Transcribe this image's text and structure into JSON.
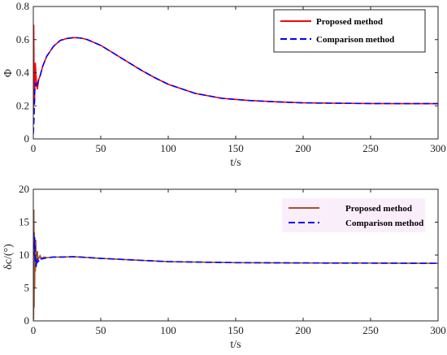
{
  "chart_data": [
    {
      "type": "line",
      "xlabel": "t/s",
      "ylabel": "Φ",
      "xlim": [
        0,
        300
      ],
      "ylim": [
        0,
        0.8
      ],
      "xticks": [
        "0",
        "50",
        "100",
        "150",
        "200",
        "250",
        "300"
      ],
      "yticks": [
        "0",
        "0.2",
        "0.4",
        "0.6",
        "0.8"
      ],
      "grid": false,
      "legend_position": "top-right",
      "series": [
        {
          "name": "Proposed method",
          "color": "#ff0000",
          "style": "solid",
          "x": [
            0,
            0.3,
            0.6,
            0.9,
            1.2,
            1.5,
            2,
            2.5,
            3,
            4,
            5,
            7,
            10,
            15,
            20,
            25,
            30,
            33,
            36,
            40,
            50,
            60,
            70,
            80,
            90,
            100,
            120,
            140,
            160,
            180,
            200,
            220,
            250,
            280,
            300
          ],
          "y": [
            0.18,
            0.69,
            0.3,
            0.22,
            0.35,
            0.46,
            0.38,
            0.32,
            0.3,
            0.36,
            0.38,
            0.44,
            0.5,
            0.56,
            0.595,
            0.607,
            0.612,
            0.611,
            0.608,
            0.6,
            0.565,
            0.515,
            0.465,
            0.415,
            0.37,
            0.33,
            0.275,
            0.245,
            0.232,
            0.224,
            0.218,
            0.216,
            0.214,
            0.213,
            0.213
          ]
        },
        {
          "name": "Comparison method",
          "color": "#0000ff",
          "style": "dashed",
          "x": [
            0,
            0.5,
            1,
            1.5,
            2,
            3,
            4,
            5,
            7,
            10,
            15,
            20,
            25,
            30,
            33,
            36,
            40,
            50,
            60,
            70,
            80,
            90,
            100,
            120,
            140,
            160,
            180,
            200,
            220,
            250,
            280,
            300
          ],
          "y": [
            0.03,
            0.12,
            0.28,
            0.34,
            0.31,
            0.33,
            0.36,
            0.38,
            0.44,
            0.5,
            0.56,
            0.595,
            0.607,
            0.612,
            0.611,
            0.608,
            0.6,
            0.565,
            0.515,
            0.465,
            0.415,
            0.37,
            0.33,
            0.275,
            0.245,
            0.232,
            0.224,
            0.218,
            0.216,
            0.214,
            0.213,
            0.213
          ]
        }
      ]
    },
    {
      "type": "line",
      "xlabel": "t/s",
      "ylabel": "δc/(°)",
      "xlim": [
        0,
        300
      ],
      "ylim": [
        0,
        20
      ],
      "xticks": [
        "0",
        "50",
        "100",
        "150",
        "200",
        "250",
        "300"
      ],
      "yticks": [
        "0",
        "5",
        "10",
        "15",
        "20"
      ],
      "grid": false,
      "legend_position": "top-right",
      "series": [
        {
          "name": "Proposed method",
          "color": "#a0522d",
          "style": "solid",
          "x": [
            0,
            0.2,
            0.4,
            0.6,
            0.8,
            1,
            1.2,
            1.5,
            1.8,
            2.2,
            2.6,
            3,
            3.5,
            4,
            5,
            6,
            8,
            10,
            15,
            20,
            30,
            35,
            50,
            70,
            100,
            150,
            200,
            250,
            300
          ],
          "y": [
            9.0,
            0.2,
            16.9,
            2.0,
            13.5,
            5.0,
            11.5,
            7.5,
            12.3,
            8.2,
            9.8,
            10.6,
            9.2,
            9.5,
            9.9,
            9.5,
            9.7,
            9.6,
            9.7,
            9.7,
            9.75,
            9.7,
            9.5,
            9.3,
            9.0,
            8.85,
            8.8,
            8.78,
            8.75
          ]
        },
        {
          "name": "Comparison method",
          "color": "#0000ff",
          "style": "dashed",
          "x": [
            0,
            0.5,
            1,
            1.5,
            2,
            2.5,
            3,
            4,
            5,
            6,
            8,
            10,
            15,
            20,
            30,
            35,
            50,
            70,
            100,
            150,
            200,
            250,
            300
          ],
          "y": [
            13.5,
            10.0,
            12.7,
            8.6,
            8.4,
            9.6,
            8.9,
            9.1,
            9.6,
            9.4,
            9.5,
            9.6,
            9.7,
            9.7,
            9.75,
            9.7,
            9.5,
            9.3,
            9.0,
            8.85,
            8.8,
            8.78,
            8.75
          ]
        }
      ]
    }
  ]
}
